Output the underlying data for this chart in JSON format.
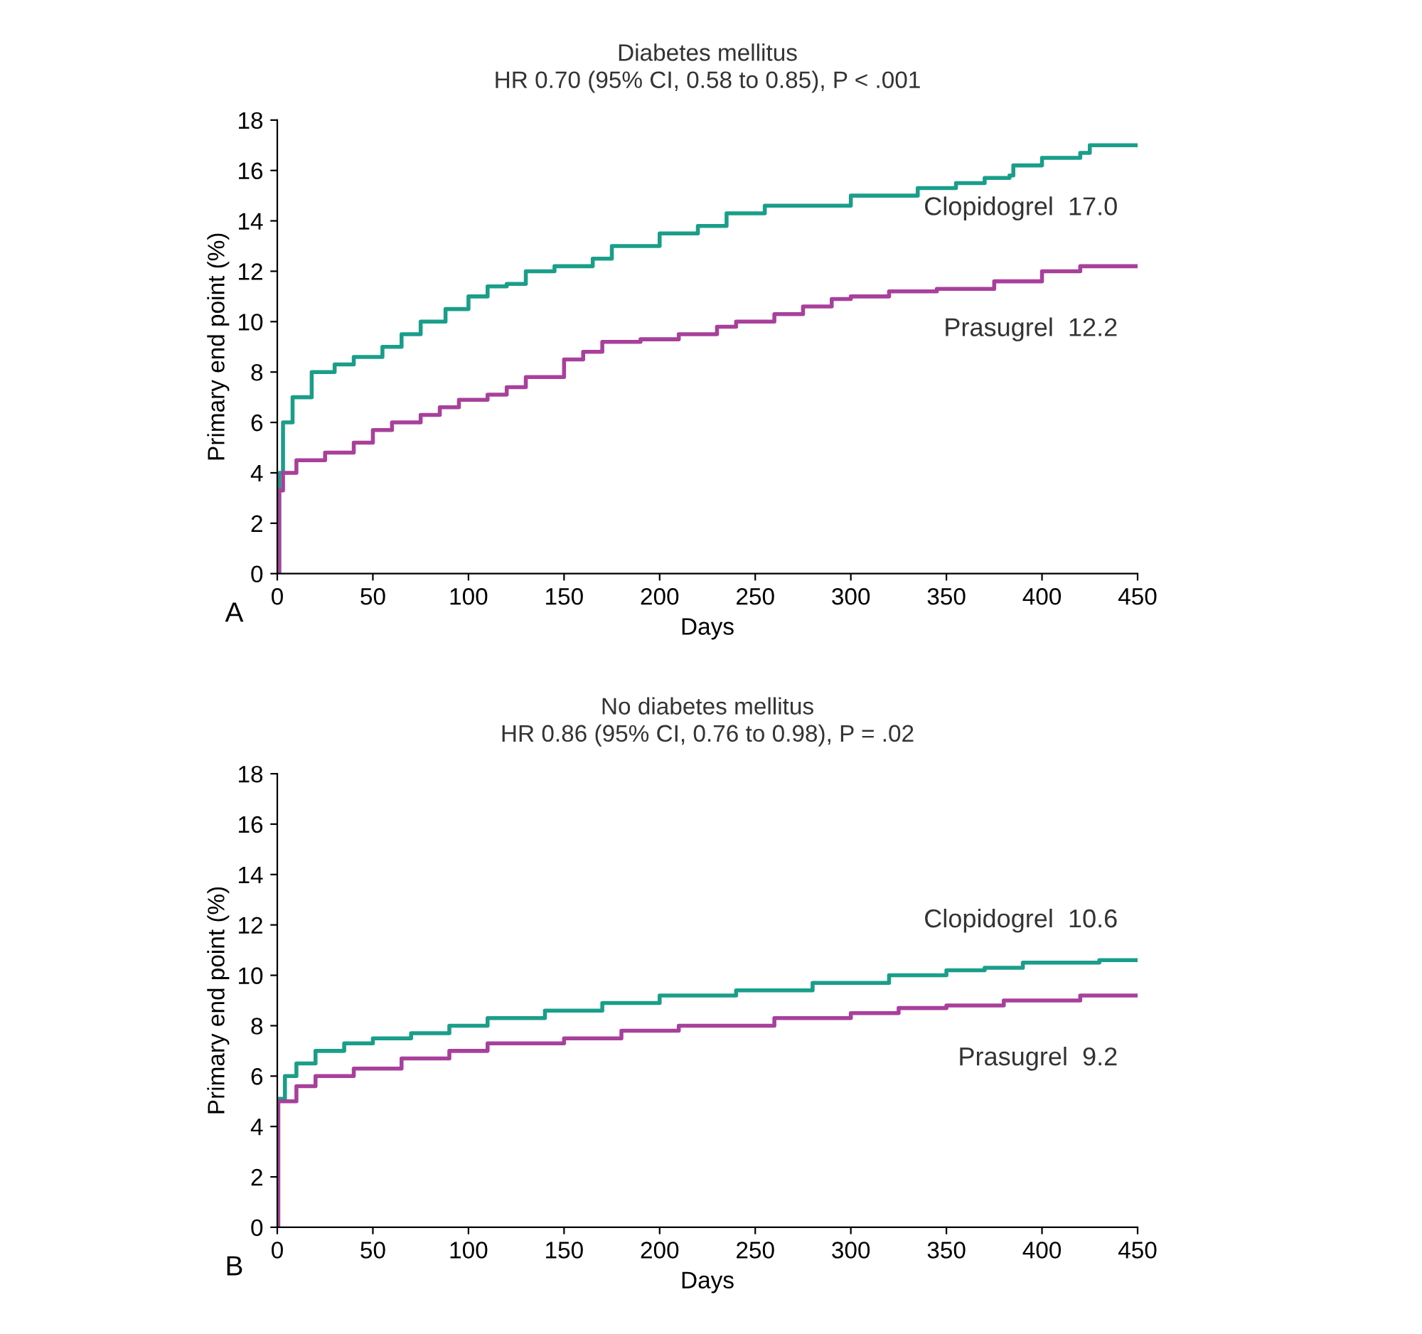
{
  "chart_data": [
    {
      "type": "step",
      "title": "Diabetes mellitus",
      "subtitle": "HR 0.70 (95% CI, 0.58 to 0.85), P < .001",
      "xlabel": "Days",
      "ylabel": "Primary end point (%)",
      "xlim": [
        0,
        450
      ],
      "ylim": [
        0,
        18
      ],
      "xticks": [
        0,
        50,
        100,
        150,
        200,
        250,
        300,
        350,
        400,
        450
      ],
      "yticks": [
        0,
        2,
        4,
        6,
        8,
        10,
        12,
        14,
        16,
        18
      ],
      "grid": false,
      "legend": false,
      "series": [
        {
          "name": "Clopidogrel  17.0",
          "color": "#1a9e8a",
          "x": [
            0,
            1,
            3,
            8,
            18,
            30,
            40,
            55,
            65,
            72,
            75,
            88,
            100,
            110,
            120,
            130,
            145,
            165,
            175,
            200,
            220,
            235,
            255,
            275,
            300,
            320,
            335,
            355,
            370,
            383,
            385,
            400,
            420,
            425,
            450
          ],
          "values": [
            0,
            4,
            6,
            7,
            8,
            8.3,
            8.6,
            9.0,
            9.5,
            9.5,
            10,
            10.5,
            11,
            11.4,
            11.5,
            12,
            12.2,
            12.5,
            13,
            13.5,
            13.8,
            14.3,
            14.6,
            14.6,
            15,
            15,
            15.3,
            15.5,
            15.7,
            15.8,
            16.2,
            16.5,
            16.7,
            17,
            17
          ]
        },
        {
          "name": "Prasugrel  12.2",
          "color": "#a8409b",
          "x": [
            0,
            1,
            3,
            10,
            25,
            40,
            50,
            60,
            75,
            85,
            95,
            110,
            120,
            130,
            140,
            150,
            160,
            170,
            190,
            210,
            230,
            240,
            260,
            275,
            290,
            300,
            320,
            345,
            375,
            400,
            420,
            450
          ],
          "values": [
            0,
            3.3,
            4,
            4.5,
            4.8,
            5.2,
            5.7,
            6,
            6.3,
            6.6,
            6.9,
            7.1,
            7.4,
            7.8,
            7.8,
            8.5,
            8.8,
            9.2,
            9.3,
            9.5,
            9.8,
            10.0,
            10.3,
            10.6,
            10.9,
            11.0,
            11.2,
            11.3,
            11.6,
            12.0,
            12.2,
            12.2
          ]
        }
      ],
      "annotations": [
        "A"
      ]
    },
    {
      "type": "step",
      "title": "No diabetes mellitus",
      "subtitle": "HR 0.86 (95% CI, 0.76 to 0.98), P = .02",
      "xlabel": "Days",
      "ylabel": "Primary end point (%)",
      "xlim": [
        0,
        450
      ],
      "ylim": [
        0,
        18
      ],
      "xticks": [
        0,
        50,
        100,
        150,
        200,
        250,
        300,
        350,
        400,
        450
      ],
      "yticks": [
        0,
        2,
        4,
        6,
        8,
        10,
        12,
        14,
        16,
        18
      ],
      "grid": false,
      "legend": false,
      "series": [
        {
          "name": "Clopidogrel  10.6",
          "color": "#1a9e8a",
          "x": [
            0,
            0.5,
            4,
            10,
            20,
            35,
            50,
            70,
            90,
            110,
            140,
            170,
            200,
            240,
            280,
            320,
            330,
            350,
            370,
            390,
            410,
            430,
            450
          ],
          "values": [
            0,
            5.1,
            6,
            6.5,
            7,
            7.3,
            7.5,
            7.7,
            8,
            8.3,
            8.6,
            8.9,
            9.2,
            9.4,
            9.7,
            10.0,
            10.0,
            10.2,
            10.3,
            10.5,
            10.5,
            10.6,
            10.6
          ]
        },
        {
          "name": "Prasugrel  9.2",
          "color": "#a8409b",
          "x": [
            0,
            0.5,
            10,
            20,
            40,
            65,
            90,
            110,
            150,
            180,
            210,
            260,
            300,
            325,
            350,
            380,
            420,
            450
          ],
          "values": [
            0,
            5,
            5.6,
            6,
            6.3,
            6.7,
            7,
            7.3,
            7.5,
            7.8,
            8,
            8.3,
            8.5,
            8.7,
            8.8,
            9.0,
            9.2,
            9.2
          ]
        }
      ],
      "annotations": [
        "B"
      ]
    }
  ]
}
